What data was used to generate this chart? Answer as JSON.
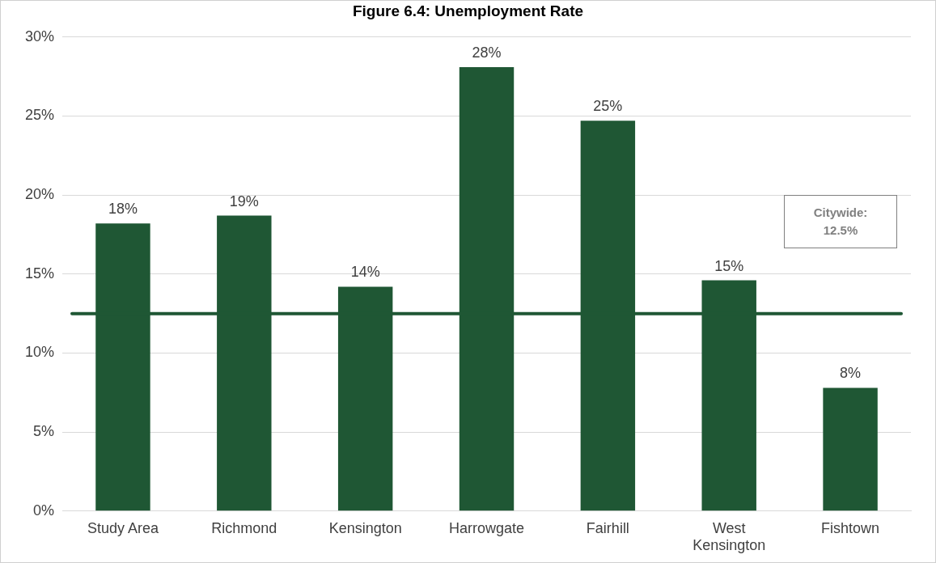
{
  "chart_data": {
    "type": "bar",
    "title": "Figure 6.4: Unemployment Rate",
    "categories": [
      "Study Area",
      "Richmond",
      "Kensington",
      "Harrowgate",
      "Fairhill",
      "West Kensington",
      "Fishtown"
    ],
    "values": [
      18.2,
      18.7,
      14.2,
      28.1,
      24.7,
      14.6,
      7.8
    ],
    "value_labels": [
      "18%",
      "19%",
      "14%",
      "28%",
      "25%",
      "15%",
      "8%"
    ],
    "color": "#1f5734",
    "ylim": [
      0,
      30
    ],
    "yticks": [
      {
        "value": 0,
        "label": "0%"
      },
      {
        "value": 5,
        "label": "5%"
      },
      {
        "value": 10,
        "label": "10%"
      },
      {
        "value": 15,
        "label": "15%"
      },
      {
        "value": 20,
        "label": "20%"
      },
      {
        "value": 25,
        "label": "25%"
      },
      {
        "value": 30,
        "label": "30%"
      }
    ],
    "grid": "y",
    "ref_lines": [
      {
        "axis": "y",
        "value": 12.5,
        "color": "#1f5734"
      }
    ],
    "annotations": [
      "Citywide: 12.5%"
    ]
  }
}
